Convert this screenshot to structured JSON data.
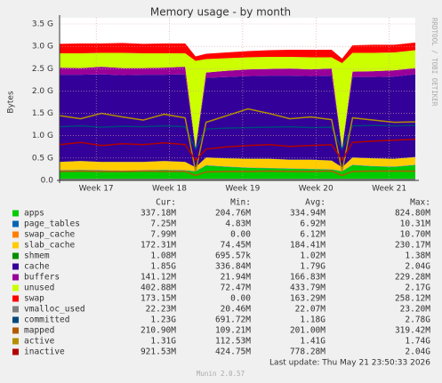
{
  "chart_data": {
    "type": "area",
    "stacked": true,
    "grid": true,
    "title": "Memory usage - by month",
    "y_label": "Bytes",
    "side_text": "RRDTOOL / TOBI OETIKER",
    "x": [
      0,
      2,
      4,
      6,
      8,
      10,
      12,
      13,
      14,
      16,
      18,
      20,
      22,
      24,
      26,
      27,
      28,
      30,
      32,
      34
    ],
    "xlim": [
      0,
      34
    ],
    "xticks": [
      {
        "value": 3.5,
        "label": "Week 17"
      },
      {
        "value": 10.5,
        "label": "Week 18"
      },
      {
        "value": 17.5,
        "label": "Week 19"
      },
      {
        "value": 24.5,
        "label": "Week 20"
      },
      {
        "value": 31.5,
        "label": "Week 21"
      }
    ],
    "ylim": [
      0,
      3.5
    ],
    "yticks": [
      {
        "value": 0,
        "label": "0.0"
      },
      {
        "value": 0.5,
        "label": "0.5 G"
      },
      {
        "value": 1,
        "label": "1.0 G"
      },
      {
        "value": 1.5,
        "label": "1.5 G"
      },
      {
        "value": 2,
        "label": "2.0 G"
      },
      {
        "value": 2.5,
        "label": "2.5 G"
      },
      {
        "value": 3,
        "label": "3.0 G"
      },
      {
        "value": 3.5,
        "label": "3.5 G"
      }
    ],
    "stat_headers": [
      "Cur:",
      "Min:",
      "Avg:",
      "Max:"
    ],
    "series": [
      {
        "name": "apps",
        "color": "#00cc00",
        "kind": "area",
        "stats": [
          "337.18M",
          "204.76M",
          "334.94M",
          "824.80M"
        ],
        "values": [
          0.22,
          0.23,
          0.22,
          0.21,
          0.22,
          0.23,
          0.22,
          0.2,
          0.33,
          0.3,
          0.28,
          0.27,
          0.26,
          0.25,
          0.24,
          0.2,
          0.34,
          0.31,
          0.3,
          0.34
        ]
      },
      {
        "name": "page_tables",
        "color": "#0066b3",
        "kind": "area",
        "stats": [
          "7.25M",
          "4.83M",
          "6.92M",
          "10.31M"
        ],
        "values": [
          0.007,
          0.007,
          0.007,
          0.007,
          0.007,
          0.007,
          0.007,
          0.007,
          0.007,
          0.007,
          0.007,
          0.007,
          0.007,
          0.007,
          0.007,
          0.007,
          0.007,
          0.007,
          0.007,
          0.007
        ]
      },
      {
        "name": "swap_cache",
        "color": "#ff8000",
        "kind": "area",
        "stats": [
          "7.99M",
          "0.00",
          "6.12M",
          "10.70M"
        ],
        "values": [
          0.006,
          0.006,
          0.006,
          0.006,
          0.006,
          0.006,
          0.006,
          0.006,
          0.006,
          0.006,
          0.006,
          0.006,
          0.006,
          0.006,
          0.006,
          0.006,
          0.006,
          0.006,
          0.006,
          0.006
        ]
      },
      {
        "name": "slab_cache",
        "color": "#ffcc00",
        "kind": "area",
        "stats": [
          "172.31M",
          "74.45M",
          "184.41M",
          "230.17M"
        ],
        "values": [
          0.18,
          0.19,
          0.18,
          0.19,
          0.18,
          0.19,
          0.18,
          0.08,
          0.17,
          0.18,
          0.19,
          0.2,
          0.19,
          0.2,
          0.19,
          0.08,
          0.16,
          0.17,
          0.17,
          0.17
        ]
      },
      {
        "name": "shmem",
        "color": "#008f00",
        "kind": "area",
        "stats": [
          "1.08M",
          "695.57k",
          "1.02M",
          "1.38M"
        ],
        "values": [
          0.001,
          0.001,
          0.001,
          0.001,
          0.001,
          0.001,
          0.001,
          0.001,
          0.001,
          0.001,
          0.001,
          0.001,
          0.001,
          0.001,
          0.001,
          0.001,
          0.001,
          0.001,
          0.001,
          0.001
        ]
      },
      {
        "name": "cache",
        "color": "#330099",
        "kind": "area",
        "stats": [
          "1.85G",
          "336.84M",
          "1.79G",
          "2.04G"
        ],
        "values": [
          1.95,
          1.93,
          1.96,
          1.94,
          1.95,
          1.93,
          1.96,
          0.4,
          1.78,
          1.82,
          1.85,
          1.86,
          1.88,
          1.87,
          1.9,
          0.4,
          1.8,
          1.82,
          1.84,
          1.85
        ]
      },
      {
        "name": "buffers",
        "color": "#990099",
        "kind": "area",
        "stats": [
          "141.12M",
          "21.94M",
          "166.83M",
          "229.28M"
        ],
        "values": [
          0.16,
          0.15,
          0.17,
          0.16,
          0.15,
          0.16,
          0.17,
          0.03,
          0.12,
          0.14,
          0.15,
          0.15,
          0.16,
          0.15,
          0.16,
          0.03,
          0.12,
          0.13,
          0.14,
          0.14
        ]
      },
      {
        "name": "unused",
        "color": "#ccff00",
        "kind": "area",
        "stats": [
          "402.88M",
          "72.47M",
          "433.79M",
          "2.17G"
        ],
        "values": [
          0.32,
          0.33,
          0.31,
          0.34,
          0.33,
          0.32,
          0.3,
          1.95,
          0.3,
          0.28,
          0.27,
          0.27,
          0.26,
          0.27,
          0.25,
          1.9,
          0.42,
          0.41,
          0.4,
          0.4
        ]
      },
      {
        "name": "swap",
        "color": "#ff0000",
        "kind": "area",
        "stats": [
          "173.15M",
          "0.00",
          "163.29M",
          "258.12M"
        ],
        "values": [
          0.21,
          0.22,
          0.21,
          0.22,
          0.21,
          0.22,
          0.22,
          0.1,
          0.12,
          0.13,
          0.14,
          0.15,
          0.16,
          0.17,
          0.17,
          0.1,
          0.17,
          0.18,
          0.17,
          0.17
        ]
      },
      {
        "name": "vmalloc_used",
        "color": "#808080",
        "kind": "line",
        "stats": [
          "22.23M",
          "20.46M",
          "22.07M",
          "23.20M"
        ],
        "values": [
          0.022,
          0.022,
          0.022,
          0.022,
          0.022,
          0.022,
          0.022,
          0.022,
          0.022,
          0.022,
          0.022,
          0.022,
          0.022,
          0.022,
          0.022,
          0.022,
          0.022,
          0.022,
          0.022,
          0.022
        ]
      },
      {
        "name": "committed",
        "color": "#00487d",
        "kind": "line",
        "stats": [
          "1.23G",
          "691.72M",
          "1.18G",
          "2.78G"
        ],
        "values": [
          1.2,
          1.22,
          1.19,
          1.21,
          1.2,
          1.22,
          1.2,
          0.7,
          1.15,
          1.17,
          1.18,
          1.19,
          1.2,
          1.18,
          1.19,
          0.7,
          1.22,
          1.23,
          1.22,
          1.23
        ]
      },
      {
        "name": "mapped",
        "color": "#b35a00",
        "kind": "line",
        "stats": [
          "210.90M",
          "109.21M",
          "201.00M",
          "319.42M"
        ],
        "values": [
          0.2,
          0.21,
          0.2,
          0.2,
          0.21,
          0.2,
          0.2,
          0.11,
          0.19,
          0.2,
          0.2,
          0.21,
          0.2,
          0.2,
          0.21,
          0.11,
          0.2,
          0.21,
          0.21,
          0.21
        ]
      },
      {
        "name": "active",
        "color": "#b38f00",
        "kind": "line",
        "stats": [
          "1.31G",
          "112.53M",
          "1.41G",
          "1.74G"
        ],
        "values": [
          1.45,
          1.38,
          1.5,
          1.42,
          1.35,
          1.48,
          1.4,
          0.2,
          1.3,
          1.45,
          1.6,
          1.5,
          1.38,
          1.42,
          1.36,
          0.2,
          1.4,
          1.35,
          1.3,
          1.31
        ]
      },
      {
        "name": "inactive",
        "color": "#b30000",
        "kind": "line",
        "stats": [
          "921.53M",
          "424.75M",
          "778.28M",
          "2.04G"
        ],
        "values": [
          0.8,
          0.85,
          0.78,
          0.82,
          0.8,
          0.84,
          0.8,
          0.45,
          0.7,
          0.75,
          0.78,
          0.8,
          0.76,
          0.78,
          0.8,
          0.45,
          0.85,
          0.88,
          0.9,
          0.92
        ]
      }
    ],
    "last_update": "Last update: Thu May 21 23:50:33 2026",
    "footer": "Munin 2.0.57"
  }
}
